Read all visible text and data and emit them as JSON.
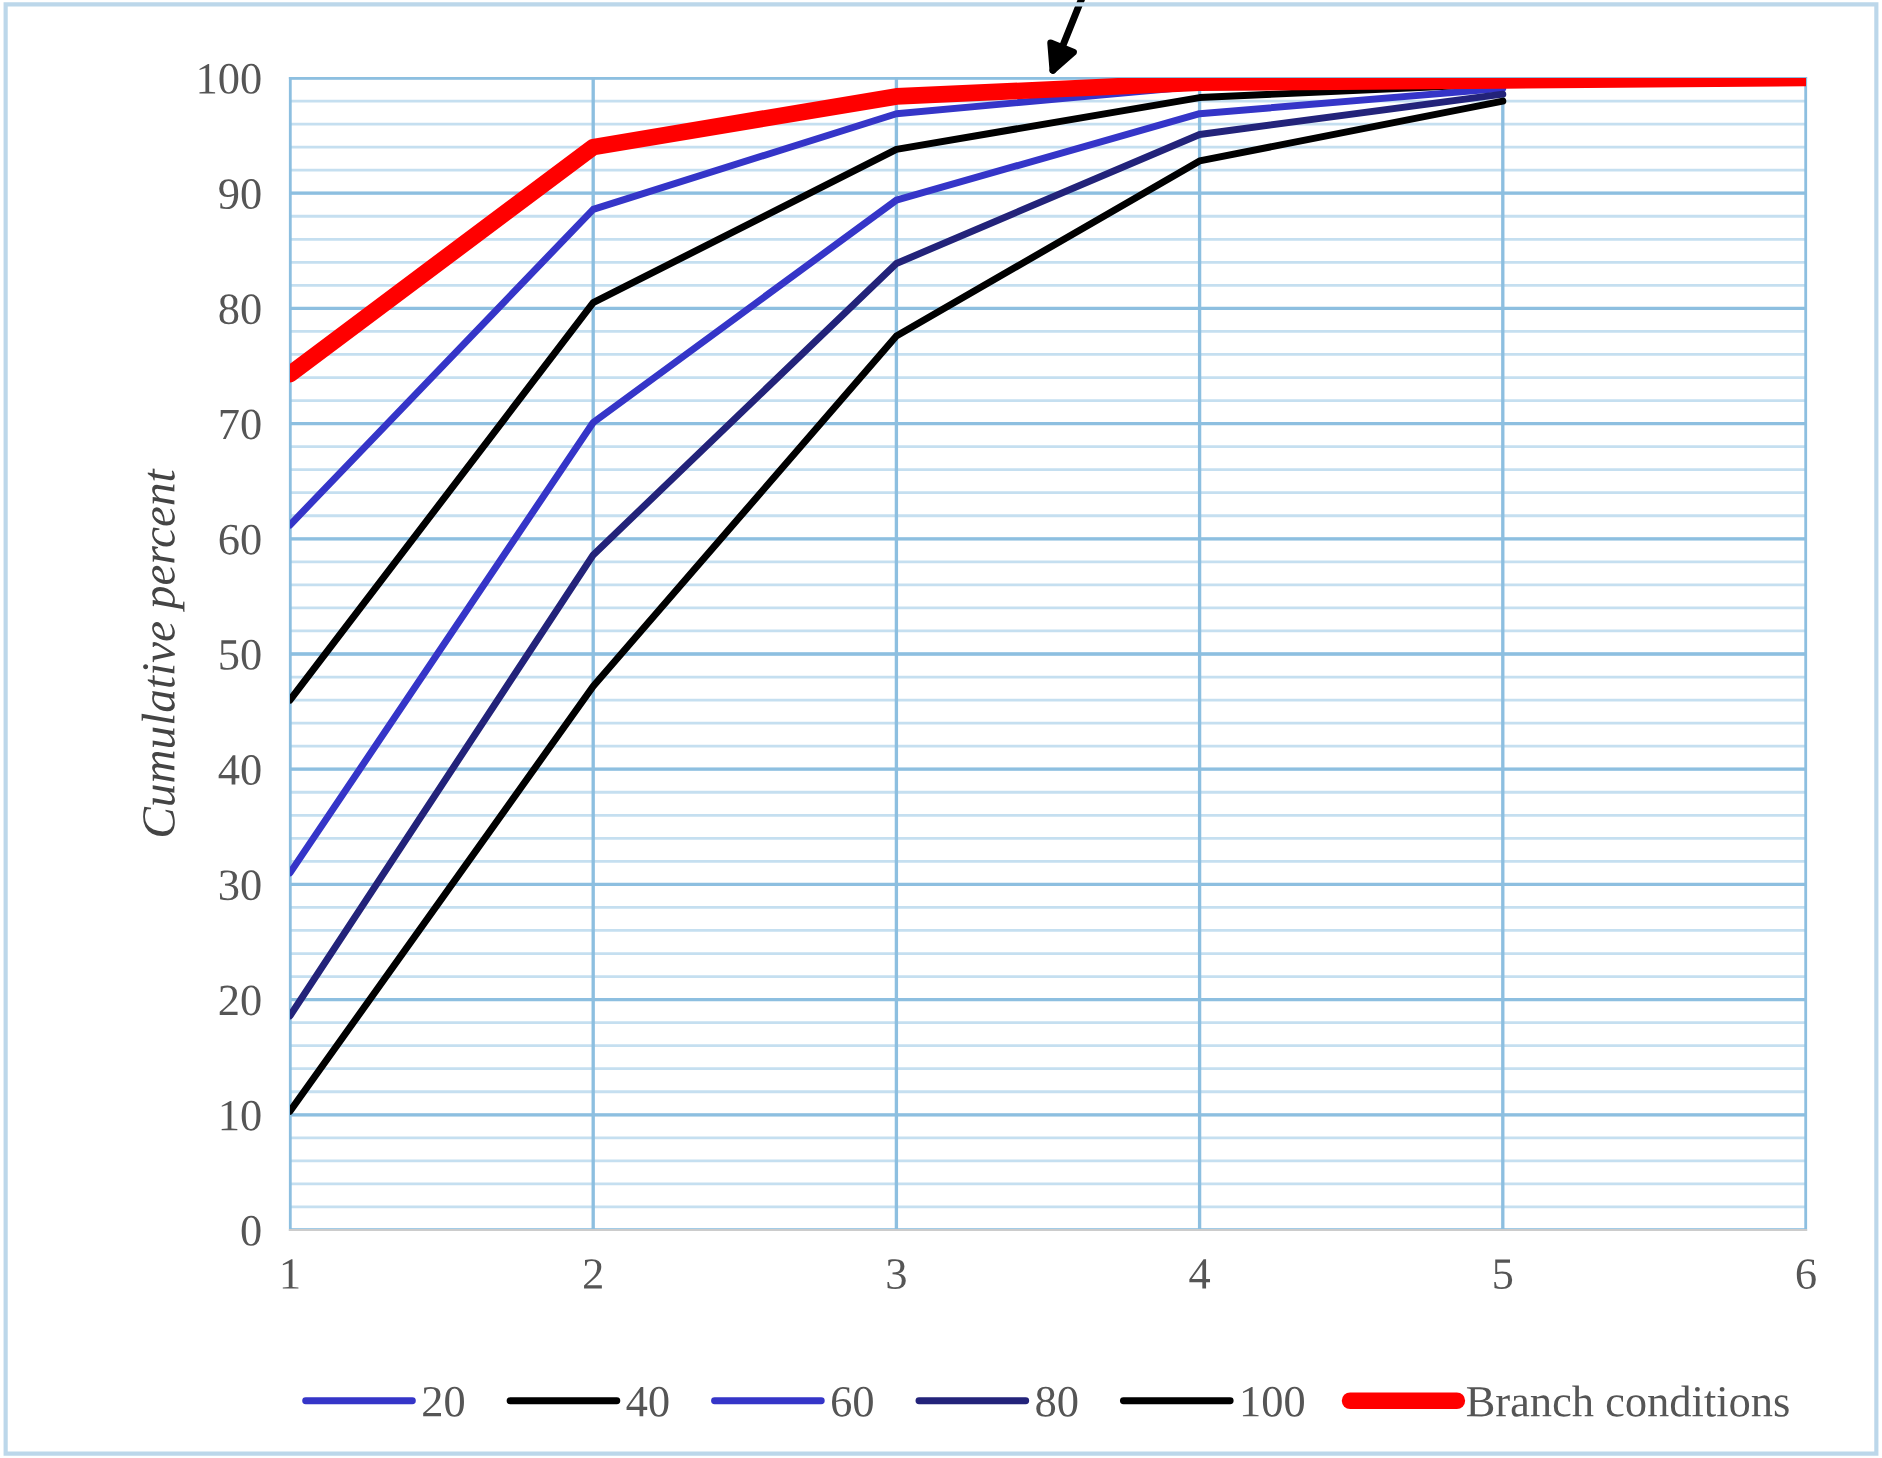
{
  "chart_data": {
    "type": "line",
    "ylabel": "Cumulative percent",
    "x": [
      1,
      2,
      3,
      4,
      5,
      6
    ],
    "series": [
      {
        "name": "20",
        "color": "#3535c8",
        "values": [
          61.2,
          88.6,
          96.9,
          99.3,
          99.7,
          null
        ]
      },
      {
        "name": "40",
        "color": "#000000",
        "values": [
          46,
          80.5,
          93.8,
          98.3,
          99.5,
          null
        ]
      },
      {
        "name": "60",
        "color": "#3535c8",
        "values": [
          31,
          70.1,
          89.4,
          96.9,
          99.1,
          null
        ]
      },
      {
        "name": "80",
        "color": "#23237a",
        "values": [
          18.6,
          58.6,
          83.9,
          95.1,
          98.6,
          null
        ]
      },
      {
        "name": "100",
        "color": "#000000",
        "values": [
          10.3,
          47.2,
          77.6,
          92.8,
          98.0,
          null
        ]
      },
      {
        "name": "Branch conditions",
        "color": "#ff0000",
        "values": [
          74.3,
          94.0,
          98.4,
          99.6,
          99.8,
          100
        ]
      }
    ],
    "xlim": [
      1,
      6
    ],
    "xticks": [
      1,
      2,
      3,
      4,
      5,
      6
    ],
    "ylim": [
      0,
      100
    ],
    "yticks": [
      0,
      10,
      20,
      30,
      40,
      50,
      60,
      70,
      80,
      90,
      100
    ],
    "grid": true,
    "legend": "bottom",
    "marker": "none",
    "line_style": "solid"
  }
}
